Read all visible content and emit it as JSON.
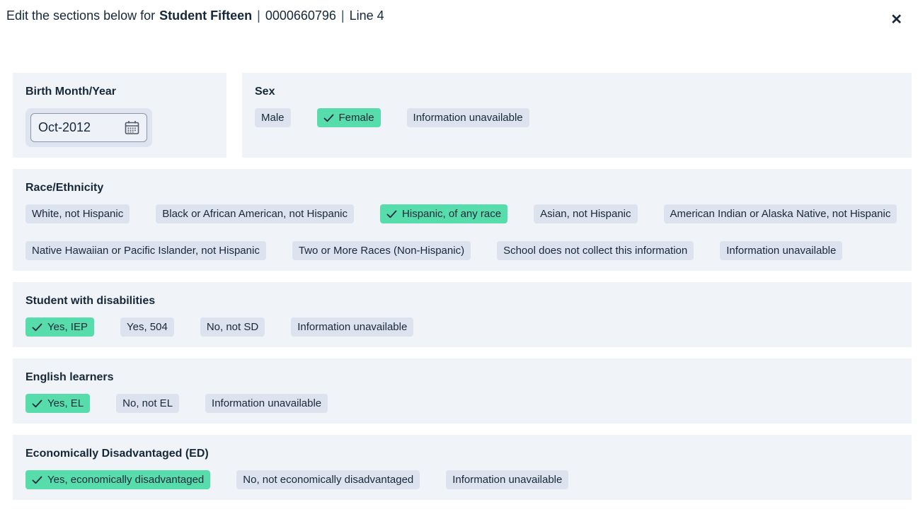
{
  "header": {
    "title_prefix": "Edit the sections below for",
    "student_name": "Student Fifteen",
    "separator": "|",
    "student_id": "0000660796",
    "line_label": "Line 4",
    "close_icon": "✕"
  },
  "colors": {
    "text": "#16283a",
    "panel_background": "#f0f3f7",
    "chip_background": "#dde3ee",
    "chip_selected_background": "#57dcab"
  },
  "sections": {
    "birth": {
      "label": "Birth Month/Year",
      "value": "Oct-2012",
      "calendar_icon": "calendar-icon"
    },
    "sex": {
      "label": "Sex",
      "options": [
        {
          "label": "Male",
          "selected": false
        },
        {
          "label": "Female",
          "selected": true
        },
        {
          "label": "Information unavailable",
          "selected": false
        }
      ]
    },
    "race": {
      "label": "Race/Ethnicity",
      "options": [
        {
          "label": "White, not Hispanic",
          "selected": false
        },
        {
          "label": "Black or African American, not Hispanic",
          "selected": false
        },
        {
          "label": "Hispanic, of any race",
          "selected": true
        },
        {
          "label": "Asian, not Hispanic",
          "selected": false
        },
        {
          "label": "American Indian or Alaska Native, not Hispanic",
          "selected": false
        },
        {
          "label": "Native Hawaiian or Pacific Islander, not Hispanic",
          "selected": false
        },
        {
          "label": "Two or More Races (Non-Hispanic)",
          "selected": false
        },
        {
          "label": "School does not collect this information",
          "selected": false
        },
        {
          "label": "Information unavailable",
          "selected": false
        }
      ]
    },
    "disabilities": {
      "label": "Student with disabilities",
      "options": [
        {
          "label": "Yes, IEP",
          "selected": true
        },
        {
          "label": "Yes, 504",
          "selected": false
        },
        {
          "label": "No, not SD",
          "selected": false
        },
        {
          "label": "Information unavailable",
          "selected": false
        }
      ]
    },
    "english_learners": {
      "label": "English learners",
      "options": [
        {
          "label": "Yes, EL",
          "selected": true
        },
        {
          "label": "No, not EL",
          "selected": false
        },
        {
          "label": "Information unavailable",
          "selected": false
        }
      ]
    },
    "economically_disadvantaged": {
      "label": "Economically Disadvantaged (ED)",
      "options": [
        {
          "label": "Yes, economically disadvantaged",
          "selected": true
        },
        {
          "label": "No, not economically disadvantaged",
          "selected": false
        },
        {
          "label": "Information unavailable",
          "selected": false
        }
      ]
    }
  }
}
